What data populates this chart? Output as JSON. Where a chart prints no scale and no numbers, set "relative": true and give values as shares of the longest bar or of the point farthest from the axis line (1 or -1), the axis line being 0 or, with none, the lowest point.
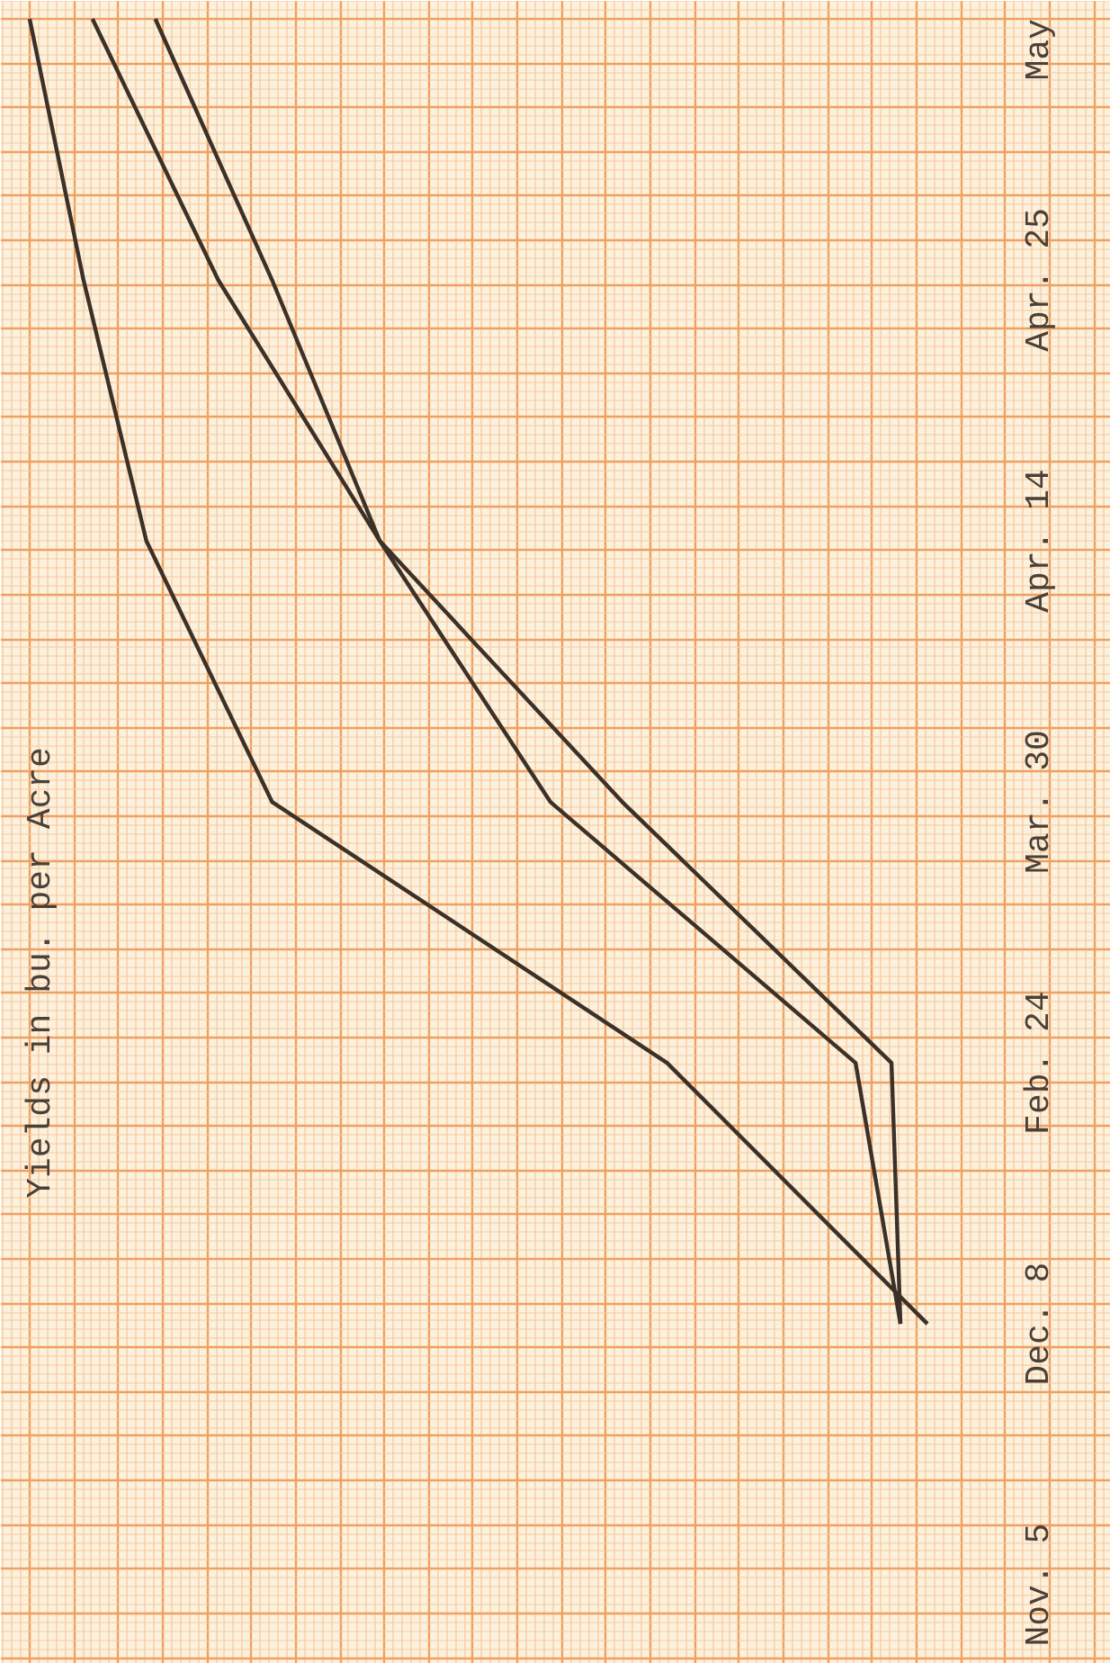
{
  "chart_data": {
    "type": "line",
    "orientation": "horizontal",
    "relative": true,
    "ylabel": "Yields in bu. per Acre",
    "grid": true,
    "categories": [
      "May",
      "Apr. 25",
      "Apr. 14",
      "Mar. 30",
      "Feb. 24",
      "Dec. 8",
      "Nov. 5"
    ],
    "series": [
      {
        "color": "#3b3128",
        "values": [
          0,
          0.06,
          0.13,
          0.27,
          0.71,
          1.0,
          null
        ]
      },
      {
        "color": "#3b3128",
        "values": [
          0.07,
          0.21,
          0.39,
          0.58,
          0.92,
          0.97,
          null
        ]
      },
      {
        "color": "#3b3128",
        "values": [
          0.14,
          0.27,
          0.39,
          0.66,
          0.96,
          0.97,
          null
        ]
      }
    ]
  }
}
